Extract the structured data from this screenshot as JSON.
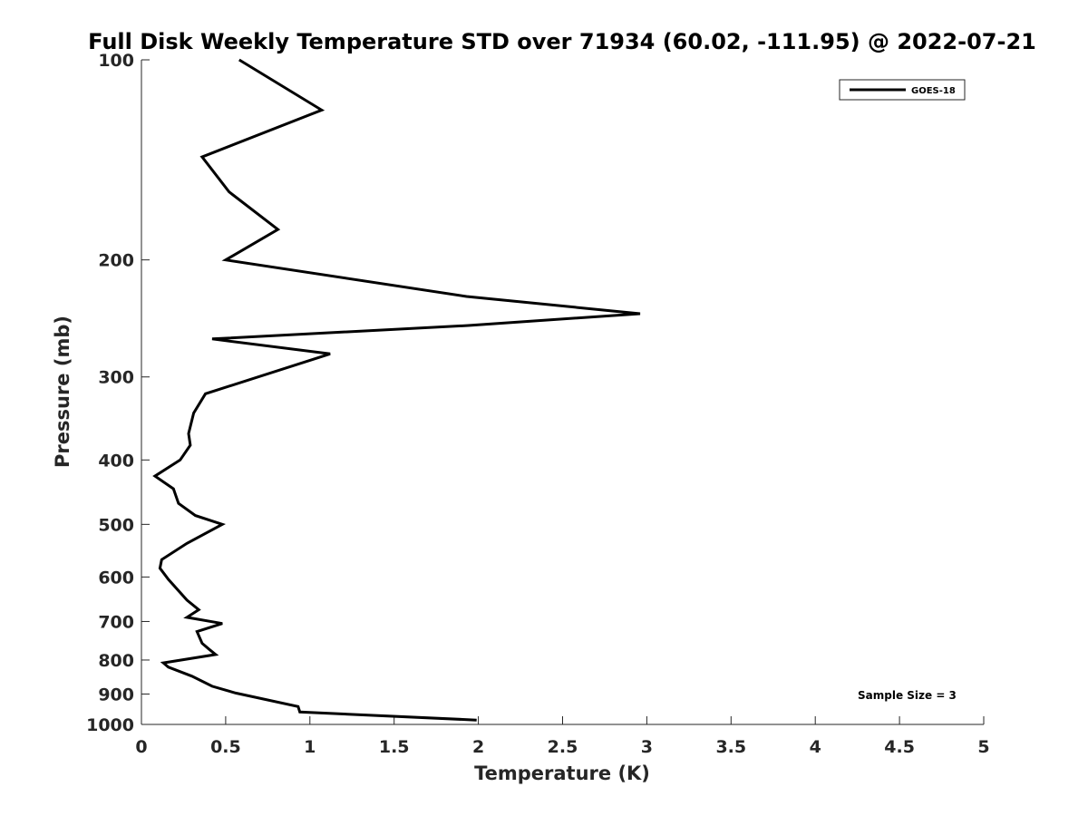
{
  "chart_data": {
    "type": "line",
    "title": "Full Disk Weekly Temperature STD over 71934 (60.02, -111.95) @ 2022-07-21",
    "xlabel": "Temperature (K)",
    "ylabel": "Pressure (mb)",
    "xlim": [
      0,
      5
    ],
    "ylim": [
      100,
      1000
    ],
    "y_scale": "log",
    "y_reversed": true,
    "grid": false,
    "legend_position": "top-right",
    "x_ticks": [
      "0",
      "0.5",
      "1",
      "1.5",
      "2",
      "2.5",
      "3",
      "3.5",
      "4",
      "4.5",
      "5"
    ],
    "x_tick_values": [
      0,
      0.5,
      1,
      1.5,
      2,
      2.5,
      3,
      3.5,
      4,
      4.5,
      5
    ],
    "y_ticks": [
      "100",
      "200",
      "300",
      "400",
      "500",
      "600",
      "700",
      "800",
      "900",
      "1000"
    ],
    "y_tick_values": [
      100,
      200,
      300,
      400,
      500,
      600,
      700,
      800,
      900,
      1000
    ],
    "series": [
      {
        "name": "GOES-18",
        "color": "#000000",
        "x": [
          0.58,
          1.07,
          0.36,
          0.52,
          0.81,
          0.5,
          1.93,
          2.96,
          1.94,
          0.42,
          1.12,
          0.38,
          0.31,
          0.28,
          0.29,
          0.23,
          0.08,
          0.19,
          0.22,
          0.32,
          0.48,
          0.27,
          0.12,
          0.11,
          0.16,
          0.27,
          0.34,
          0.27,
          0.48,
          0.33,
          0.36,
          0.4,
          0.44,
          0.13,
          0.16,
          0.3,
          0.42,
          0.56,
          0.93,
          0.94,
          1.99
        ],
        "y": [
          100,
          119,
          140,
          158,
          180,
          200,
          227,
          241,
          251,
          263,
          277,
          318,
          340,
          365,
          380,
          400,
          423,
          442,
          465,
          485,
          500,
          534,
          565,
          582,
          605,
          650,
          672,
          690,
          705,
          725,
          755,
          770,
          785,
          808,
          820,
          846,
          876,
          897,
          940,
          958,
          985
        ]
      }
    ],
    "annotations": [
      {
        "text": "Sample Size = 3",
        "position": "bottom-right"
      }
    ]
  }
}
